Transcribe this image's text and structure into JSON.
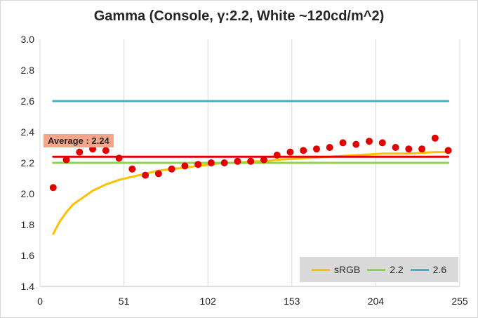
{
  "chart_data": {
    "type": "line",
    "title": "Gamma (Console, γ:2.2, White ~120cd/m^2)",
    "xlim": [
      0,
      255
    ],
    "ylim": [
      1.4,
      3.0
    ],
    "x_ticks": [
      "0",
      "51",
      "102",
      "153",
      "204",
      "255"
    ],
    "y_ticks": [
      "1.4",
      "1.6",
      "1.8",
      "2.0",
      "2.2",
      "2.4",
      "2.6",
      "2.8",
      "3.0"
    ],
    "grid": "vertical",
    "legend_position": "bottom-right",
    "series": [
      {
        "name": "sRGB",
        "color": "#ffc000",
        "kind": "line",
        "x": [
          8,
          12,
          16,
          20,
          24,
          32,
          40,
          48,
          56,
          64,
          72,
          80,
          88,
          96,
          104,
          112,
          120,
          128,
          136,
          144,
          160,
          176,
          192,
          208,
          224,
          240,
          248
        ],
        "values": [
          1.74,
          1.82,
          1.88,
          1.93,
          1.96,
          2.02,
          2.06,
          2.09,
          2.11,
          2.13,
          2.15,
          2.16,
          2.17,
          2.18,
          2.19,
          2.2,
          2.2,
          2.21,
          2.21,
          2.22,
          2.23,
          2.24,
          2.25,
          2.26,
          2.26,
          2.27,
          2.27
        ]
      },
      {
        "name": "2.2",
        "color": "#92d050",
        "kind": "line",
        "x": [
          8,
          248
        ],
        "values": [
          2.2,
          2.2
        ]
      },
      {
        "name": "2.6",
        "color": "#4bacc6",
        "kind": "line",
        "x": [
          8,
          248
        ],
        "values": [
          2.6,
          2.6
        ]
      },
      {
        "name": "",
        "color": "#e00000",
        "kind": "line",
        "x": [
          8,
          248
        ],
        "values": [
          2.24,
          2.24
        ]
      },
      {
        "name": "",
        "color": "#e00000",
        "kind": "scatter",
        "x": [
          8,
          16,
          24,
          32,
          40,
          48,
          56,
          64,
          72,
          80,
          88,
          96,
          104,
          112,
          120,
          128,
          136,
          144,
          152,
          160,
          168,
          176,
          184,
          192,
          200,
          208,
          216,
          224,
          232,
          240,
          248
        ],
        "values": [
          2.04,
          2.22,
          2.27,
          2.29,
          2.28,
          2.23,
          2.16,
          2.12,
          2.13,
          2.16,
          2.18,
          2.19,
          2.2,
          2.2,
          2.21,
          2.21,
          2.22,
          2.25,
          2.27,
          2.28,
          2.29,
          2.3,
          2.33,
          2.32,
          2.34,
          2.33,
          2.3,
          2.29,
          2.29,
          2.36,
          2.28
        ]
      }
    ],
    "annotation": "Average : 2.24"
  }
}
